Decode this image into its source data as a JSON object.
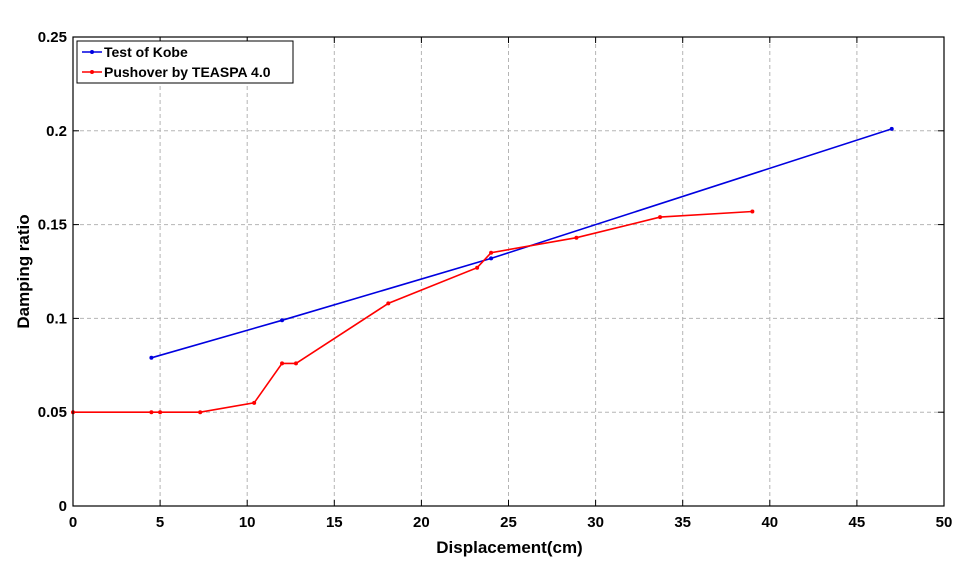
{
  "chart_data": {
    "type": "line",
    "title": "",
    "xlabel": "Displacement(cm)",
    "ylabel": "Damping ratio",
    "xlim": [
      0,
      50
    ],
    "ylim": [
      0,
      0.25
    ],
    "xticks": [
      0,
      5,
      10,
      15,
      20,
      25,
      30,
      35,
      40,
      45,
      50
    ],
    "yticks": [
      0,
      0.05,
      0.1,
      0.15,
      0.2,
      0.25
    ],
    "xtick_labels": [
      "0",
      "5",
      "10",
      "15",
      "20",
      "25",
      "30",
      "35",
      "40",
      "45",
      "50"
    ],
    "ytick_labels": [
      "0",
      "0.05",
      "0.1",
      "0.15",
      "0.2",
      "0.25"
    ],
    "grid": true,
    "legend_position": "top-left",
    "series": [
      {
        "name": "Test of Kobe",
        "color": "#0000e0",
        "x": [
          4.5,
          12.0,
          24.0,
          47.0
        ],
        "y": [
          0.079,
          0.099,
          0.132,
          0.201
        ]
      },
      {
        "name": "Pushover by TEASPA 4.0",
        "color": "#ff0000",
        "x": [
          0,
          4.5,
          5.0,
          7.3,
          10.4,
          12.0,
          12.8,
          18.1,
          23.2,
          24.0,
          28.9,
          33.7,
          39.0
        ],
        "y": [
          0.05,
          0.05,
          0.05,
          0.05,
          0.055,
          0.076,
          0.076,
          0.108,
          0.127,
          0.135,
          0.143,
          0.154,
          0.157
        ]
      }
    ]
  }
}
